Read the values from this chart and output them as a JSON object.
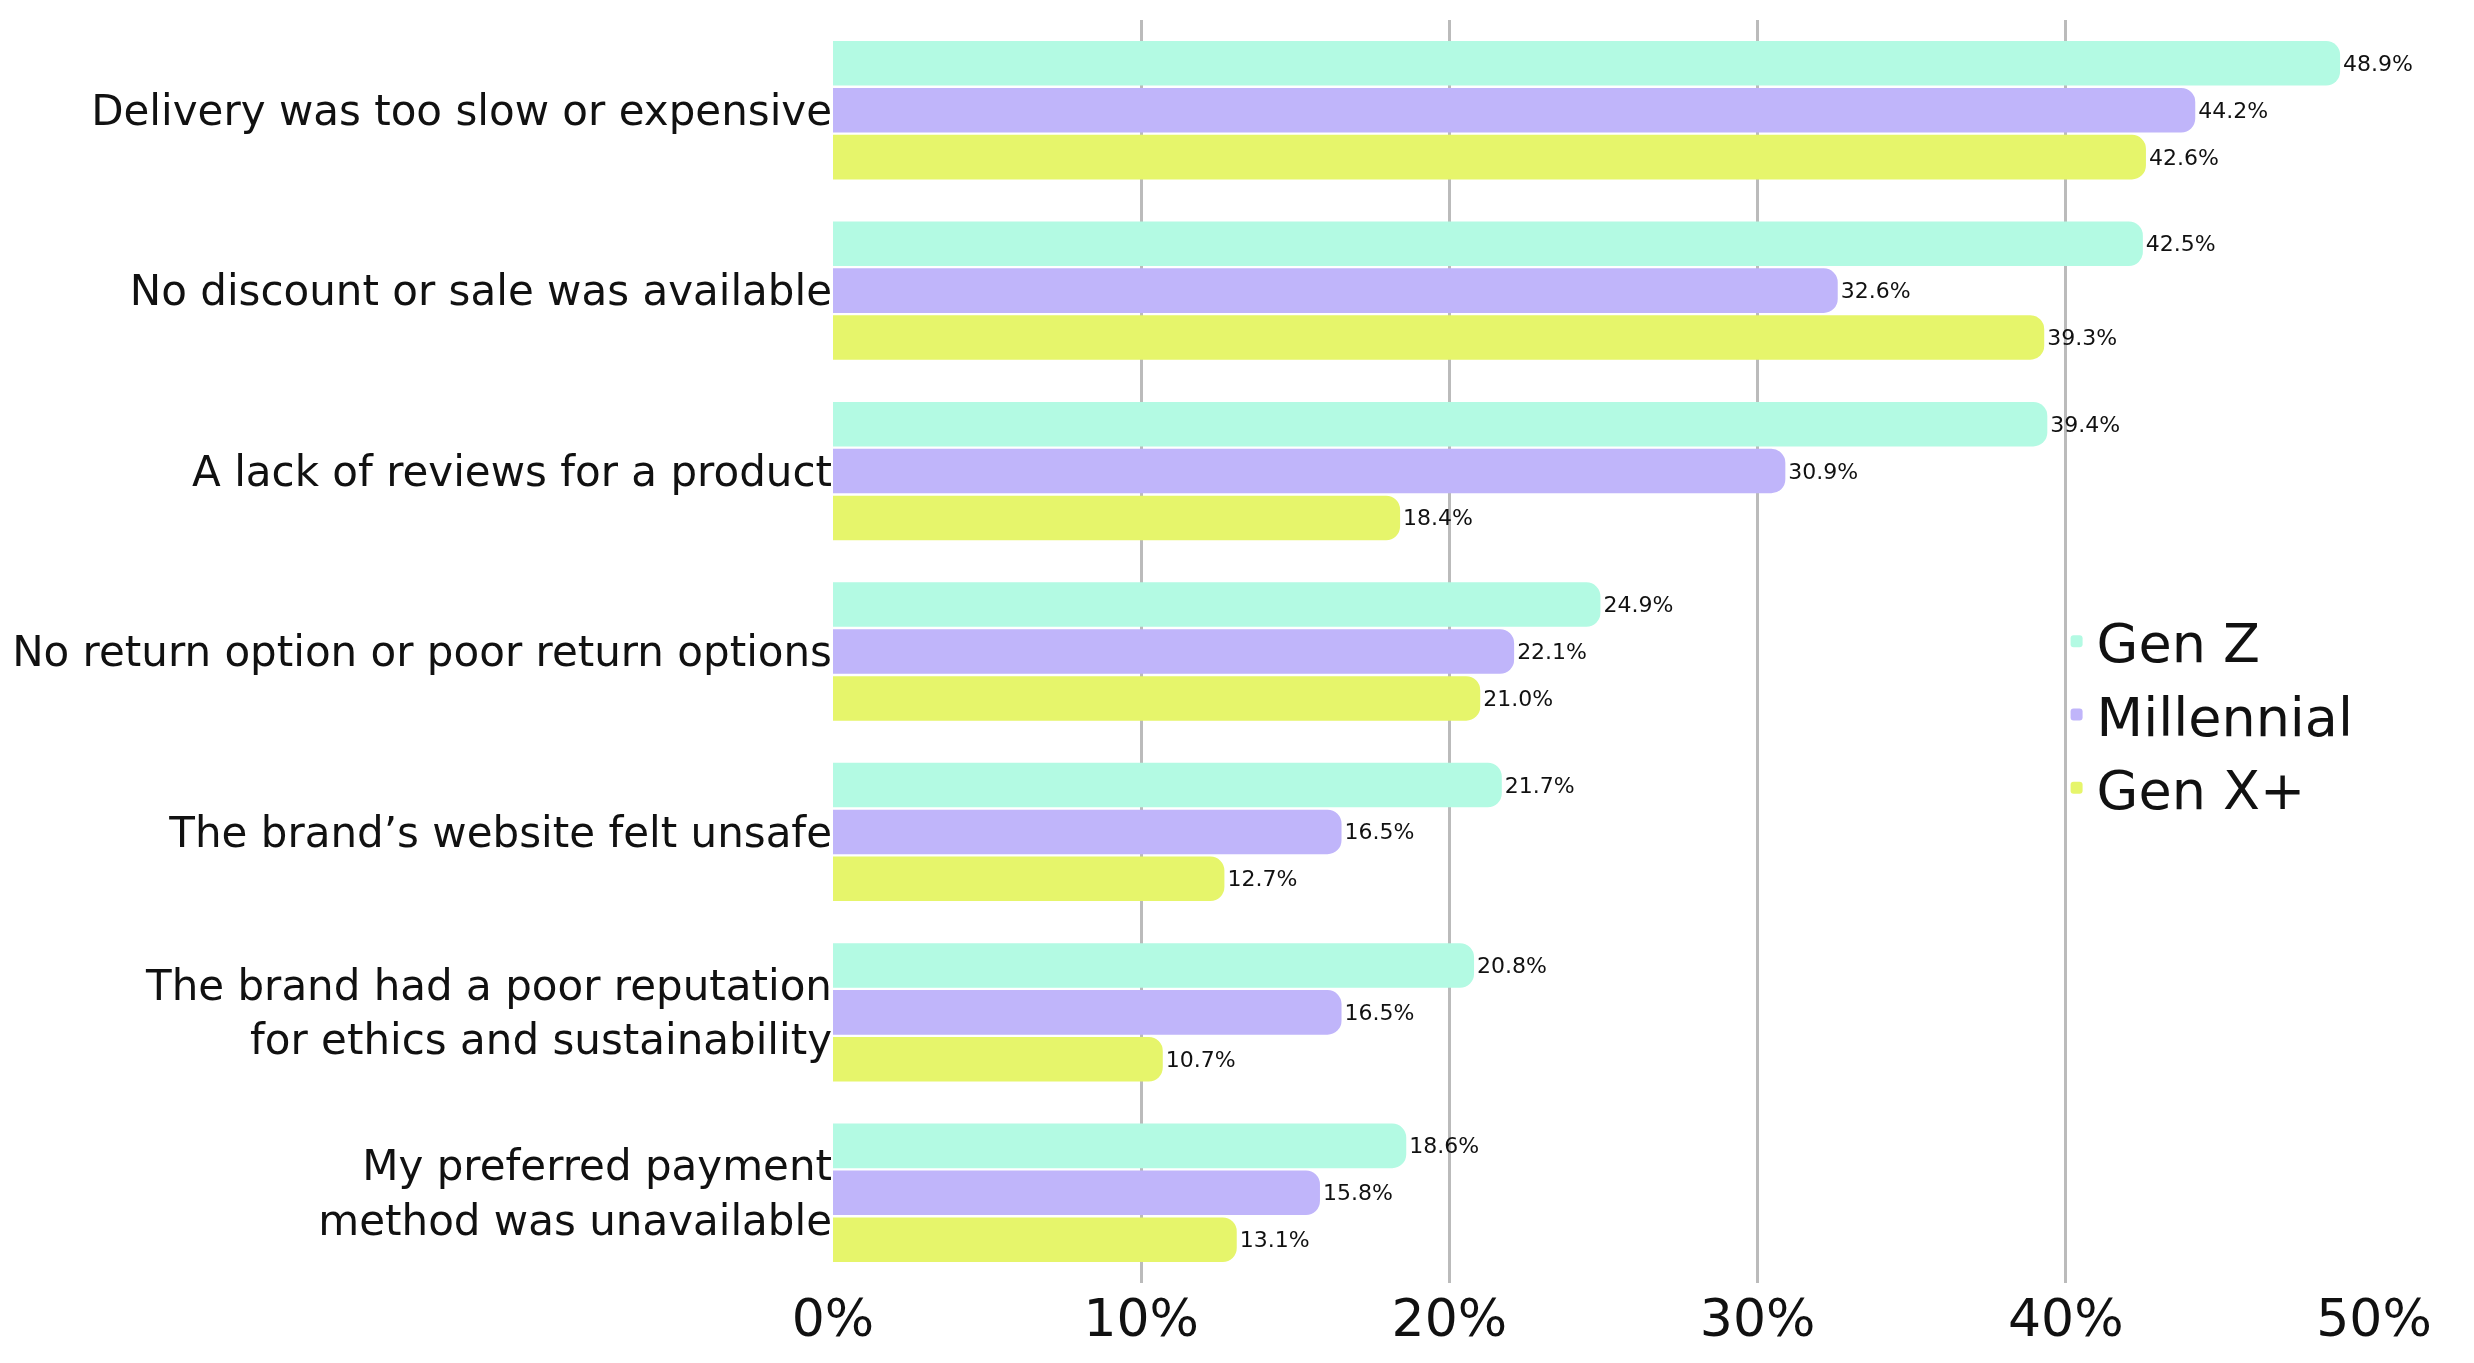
{
  "chart_data": {
    "type": "bar",
    "orientation": "horizontal",
    "categories": [
      "Delivery was too slow or expensive",
      "No discount or sale was available",
      "A lack of reviews for a product",
      "No return option or poor return options",
      "The brand’s website felt unsafe",
      "The brand had a poor reputation\nfor ethics and sustainability",
      "My preferred payment\nmethod was unavailable"
    ],
    "series": [
      {
        "name": "Gen Z",
        "color": "#b3fae3",
        "values": [
          48.9,
          42.5,
          39.4,
          24.9,
          21.7,
          20.8,
          18.6
        ],
        "value_labels": [
          "48.9%",
          "42.5%",
          "39.4%",
          "24.9%",
          "21.7%",
          "20.8%",
          "18.6%"
        ]
      },
      {
        "name": "Millennial",
        "color": "#c0b5fa",
        "values": [
          44.2,
          32.6,
          30.9,
          22.1,
          16.5,
          16.5,
          15.8
        ],
        "value_labels": [
          "44.2%",
          "32.6%",
          "30.9%",
          "22.1%",
          "16.5%",
          "16.5%",
          "15.8%"
        ]
      },
      {
        "name": "Gen X+",
        "color": "#e6f56b",
        "values": [
          42.6,
          39.3,
          18.4,
          21.0,
          12.7,
          10.7,
          13.1
        ],
        "value_labels": [
          "42.6%",
          "39.3%",
          "18.4%",
          "21.0%",
          "12.7%",
          "10.7%",
          "13.1%"
        ]
      }
    ],
    "xlim": [
      0,
      50
    ],
    "xticks": [
      {
        "value": 0,
        "label": "0%"
      },
      {
        "value": 10,
        "label": "10%"
      },
      {
        "value": 20,
        "label": "20%"
      },
      {
        "value": 30,
        "label": "30%"
      },
      {
        "value": 40,
        "label": "40%"
      },
      {
        "value": 50,
        "label": "50%"
      }
    ],
    "grid": "x",
    "legend": "right"
  }
}
